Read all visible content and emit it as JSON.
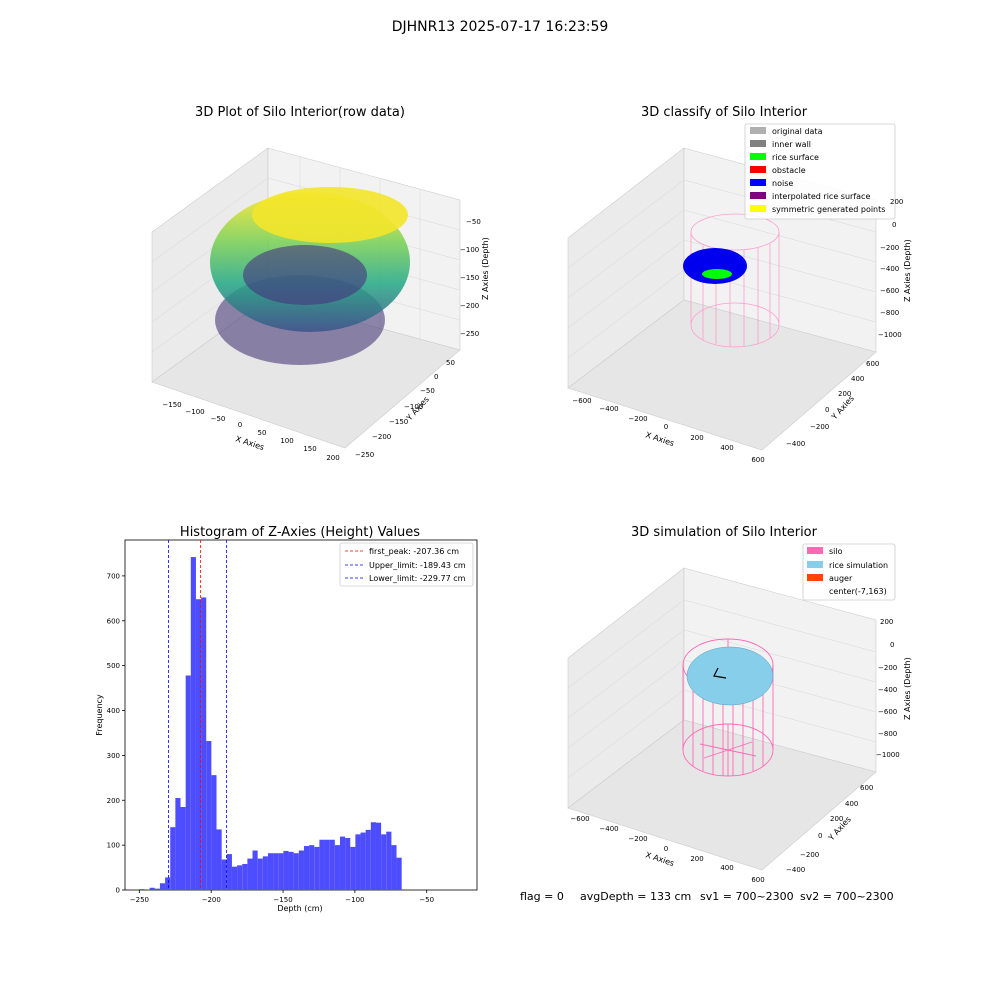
{
  "figure_title": "DJHNR13 2025-07-17 16:23:59",
  "panels": {
    "raw": {
      "title": "3D Plot of Silo Interior(row data)",
      "xlabel": "X Axies",
      "ylabel": "Y Axies",
      "zlabel": "Z Axies (Depth)",
      "x_ticks": [
        "−150",
        "−100",
        "−50",
        "0",
        "50",
        "100",
        "150",
        "200"
      ],
      "y_ticks": [
        "−250",
        "−200",
        "−150",
        "−100",
        "−50",
        "0",
        "50"
      ],
      "z_ticks": [
        "−50",
        "−100",
        "−150",
        "−200",
        "−250"
      ]
    },
    "classify": {
      "title": "3D classify of Silo Interior",
      "xlabel": "X Axies",
      "ylabel": "Y Axies",
      "zlabel": "Z Axies (Depth)",
      "x_ticks": [
        "−600",
        "−400",
        "−200",
        "0",
        "200",
        "400",
        "600"
      ],
      "y_ticks": [
        "−400",
        "−200",
        "0",
        "200",
        "400",
        "600"
      ],
      "z_ticks": [
        "200",
        "0",
        "−200",
        "−400",
        "−600",
        "−800",
        "−1000"
      ],
      "legend": [
        {
          "label": "original data",
          "color": "#b0b0b0"
        },
        {
          "label": "inner wall",
          "color": "#808080"
        },
        {
          "label": "rice surface",
          "color": "#00ff00"
        },
        {
          "label": "obstacle",
          "color": "#ff0000"
        },
        {
          "label": "noise",
          "color": "#0000ff"
        },
        {
          "label": "interpolated rice surface",
          "color": "#800080"
        },
        {
          "label": "symmetric generated points",
          "color": "#ffff00"
        }
      ]
    },
    "simulation": {
      "title": "3D simulation of Silo Interior",
      "xlabel": "X Axies",
      "ylabel": "Y Axies",
      "zlabel": "Z Axies (Depth)",
      "x_ticks": [
        "−600",
        "−400",
        "−200",
        "0",
        "200",
        "400",
        "600"
      ],
      "y_ticks": [
        "−400",
        "−200",
        "0",
        "200",
        "400",
        "600"
      ],
      "z_ticks": [
        "200",
        "0",
        "−200",
        "−400",
        "−600",
        "−800",
        "−1000"
      ],
      "legend": [
        {
          "label": "silo",
          "color": "#ff69b4"
        },
        {
          "label": "rice simulation",
          "color": "#87ceeb"
        },
        {
          "label": "auger",
          "color": "#ff4500"
        },
        {
          "label": "center(-7,163)",
          "color": "none"
        }
      ]
    }
  },
  "status_line": {
    "flag": "flag = 0",
    "avg_depth": "avgDepth = 133 cm",
    "sv1": "sv1 = 700~2300",
    "sv2": "sv2 = 700~2300"
  },
  "colors": {
    "histogram_bar": "#4d4dff",
    "peak_line": "#ff0000",
    "limit_line": "#0000ff"
  },
  "chart_data": [
    {
      "type": "histogram",
      "title": "Histogram of Z-Axies (Height) Values",
      "xlabel": "Depth (cm)",
      "ylabel": "Frequency",
      "xlim": [
        -260,
        -15
      ],
      "ylim": [
        0,
        780
      ],
      "x_ticks": [
        -250,
        -200,
        -150,
        -100,
        -50
      ],
      "x_tick_labels": [
        "−250",
        "−200",
        "−150",
        "−100",
        "−50"
      ],
      "y_ticks": [
        0,
        100,
        200,
        300,
        400,
        500,
        600,
        700
      ],
      "bin_start": -250,
      "bin_width": 3.58,
      "counts": [
        2,
        0,
        5,
        3,
        15,
        28,
        140,
        205,
        185,
        478,
        742,
        648,
        652,
        332,
        256,
        135,
        68,
        80,
        52,
        55,
        58,
        70,
        88,
        70,
        75,
        82,
        82,
        82,
        87,
        85,
        82,
        88,
        98,
        100,
        96,
        112,
        112,
        112,
        100,
        119,
        116,
        96,
        124,
        128,
        134,
        151,
        150,
        124,
        130,
        100,
        72
      ],
      "vlines": [
        {
          "label": "first_peak: -207.36 cm",
          "x": -207.36,
          "color": "#ff0000"
        },
        {
          "label": "Upper_limit: -189.43 cm",
          "x": -189.43,
          "color": "#0000ff"
        },
        {
          "label": "Lower_limit: -229.77 cm",
          "x": -229.77,
          "color": "#0000ff"
        }
      ],
      "legend_position": "upper right"
    }
  ]
}
